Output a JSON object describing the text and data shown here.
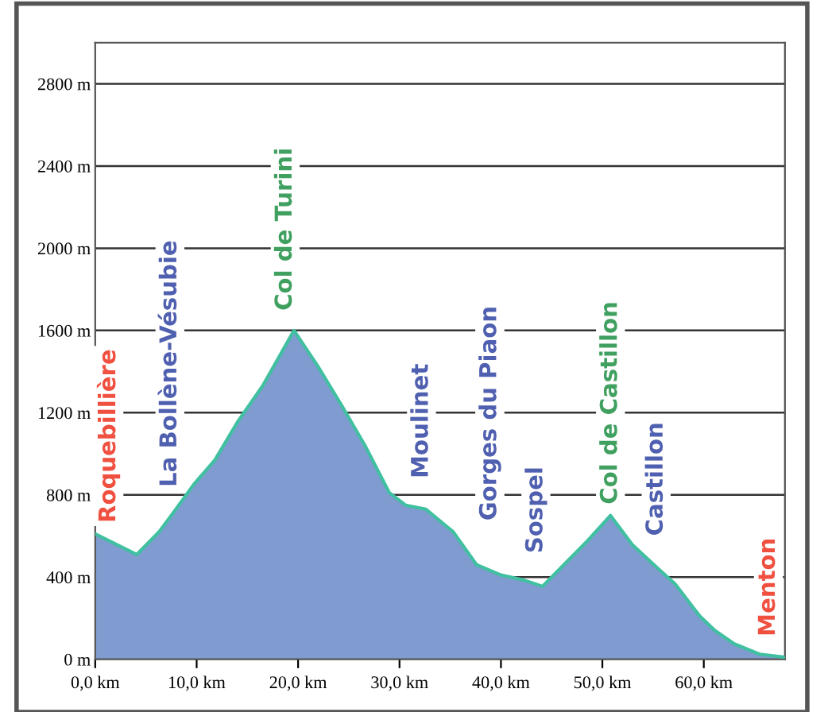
{
  "chart_data": {
    "type": "area",
    "series": [
      {
        "color": "#7f9bcf",
        "x": [
          0,
          4.1,
          6.3,
          7.8,
          9.7,
          11.8,
          14.1,
          16.5,
          19.6,
          21.9,
          24.3,
          26.6,
          29.0,
          30.6,
          32.6,
          35.3,
          37.6,
          40.0,
          42.3,
          44.1,
          46.2,
          48.6,
          50.8,
          53.0,
          55.3,
          57.2,
          59.6,
          61.1,
          63.0,
          65.5,
          68
        ],
        "values": [
          610,
          510,
          620,
          720,
          850,
          970,
          1160,
          1330,
          1600,
          1430,
          1235,
          1040,
          810,
          750,
          730,
          620,
          460,
          410,
          385,
          355,
          460,
          580,
          700,
          555,
          450,
          365,
          210,
          140,
          75,
          25,
          10
        ]
      }
    ],
    "xlim": [
      0,
      68
    ],
    "ylim": [
      0,
      3000
    ],
    "xticks": [
      {
        "value": 0,
        "label": "0,0 km"
      },
      {
        "value": 10,
        "label": "10,0 km"
      },
      {
        "value": 20,
        "label": "20,0 km"
      },
      {
        "value": 30,
        "label": "30,0 km"
      },
      {
        "value": 40,
        "label": "40,0 km"
      },
      {
        "value": 50,
        "label": "50,0 km"
      },
      {
        "value": 60,
        "label": "60,0 km"
      }
    ],
    "yticks": [
      {
        "value": 0,
        "label": "0 m"
      },
      {
        "value": 400,
        "label": "400 m"
      },
      {
        "value": 800,
        "label": "800 m"
      },
      {
        "value": 1200,
        "label": "1200 m"
      },
      {
        "value": 1600,
        "label": "1600 m"
      },
      {
        "value": 2000,
        "label": "2000 m"
      },
      {
        "value": 2400,
        "label": "2400 m"
      },
      {
        "value": 2800,
        "label": "2800 m"
      }
    ],
    "grid": "y",
    "annotations": [
      {
        "text": "Roquebillière",
        "x": 0,
        "y": 610
      },
      {
        "text": "La Bollène-Vésubie",
        "x": 7.8,
        "y": 720
      },
      {
        "text": "Col de Turini",
        "x": 19.6,
        "y": 1600
      },
      {
        "text": "Moulinet",
        "x": 32.6,
        "y": 730
      },
      {
        "text": "Gorges du Piaon",
        "x": 37.6,
        "y": 460
      },
      {
        "text": "Sospel",
        "x": 44.1,
        "y": 355
      },
      {
        "text": "Col de Castillon",
        "x": 50.8,
        "y": 700
      },
      {
        "text": "Castillon",
        "x": 55.3,
        "y": 450
      },
      {
        "text": "Menton",
        "x": 65.5,
        "y": 25
      }
    ]
  }
}
